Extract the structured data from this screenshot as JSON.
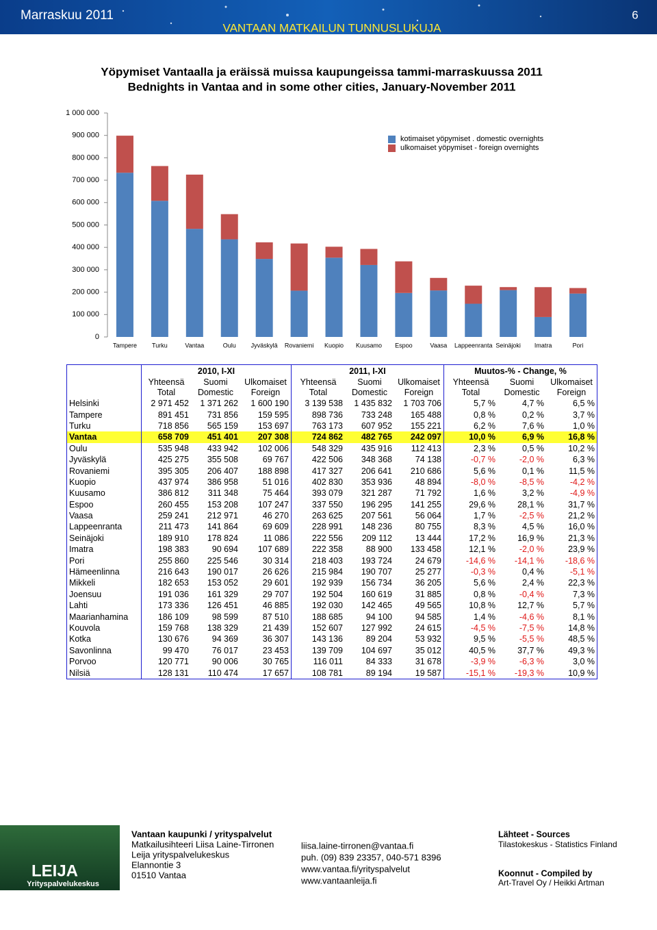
{
  "header": {
    "month": "Marraskuu 2011",
    "page": "6",
    "subtitle": "VANTAAN MATKAILUN TUNNUSLUKUJA"
  },
  "chart_data": {
    "type": "bar",
    "stacked": true,
    "title": [
      "Yöpymiset Vantaalla ja eräissä muissa kaupungeissa tammi-marraskuussa 2011",
      "Bednights in Vantaa and in some other cities, January-November 2011"
    ],
    "categories": [
      "Tampere",
      "Turku",
      "Vantaa",
      "Oulu",
      "Jyväskylä",
      "Rovaniemi",
      "Kuopio",
      "Kuusamo",
      "Espoo",
      "Vaasa",
      "Lappeenranta",
      "Seinäjoki",
      "Imatra",
      "Pori"
    ],
    "series": [
      {
        "name": "kotimaiset yöpymiset . domestic overnights",
        "color": "#4f81bd",
        "values": [
          733248,
          607952,
          482765,
          435916,
          348368,
          206641,
          353936,
          321287,
          196295,
          207561,
          148236,
          209112,
          88900,
          193724
        ]
      },
      {
        "name": "ulkomaiset yöpymiset - foreign overnights",
        "color": "#c0504d",
        "values": [
          165488,
          155221,
          242097,
          112413,
          74138,
          210686,
          48894,
          71792,
          141255,
          56064,
          80755,
          13444,
          133458,
          24679
        ]
      }
    ],
    "ylim": [
      0,
      1000000
    ],
    "yticks": [
      0,
      {
        "value": 100000,
        "label": "100 000"
      },
      {
        "value": 200000,
        "label": "200 000"
      },
      {
        "value": 300000,
        "label": "300 000"
      },
      {
        "value": 400000,
        "label": "400 000"
      },
      {
        "value": 500000,
        "label": "500 000"
      },
      {
        "value": 600000,
        "label": "600 000"
      },
      {
        "value": 700000,
        "label": "700 000"
      },
      {
        "value": 800000,
        "label": "800 000"
      },
      {
        "value": 900000,
        "label": "900 000"
      },
      {
        "value": 1000000,
        "label": "1 000 000"
      }
    ],
    "grid": false,
    "legend": "top-right"
  },
  "table": {
    "groups": [
      "2010, I-XI",
      "2011, I-XI",
      "Muutos-% - Change, %"
    ],
    "columns": [
      [
        "Yhteensä",
        "Total"
      ],
      [
        "Suomi",
        "Domestic"
      ],
      [
        "Ulkomaiset",
        "Foreign"
      ],
      [
        "Yhteensä",
        "Total"
      ],
      [
        "Suomi",
        "Domestic"
      ],
      [
        "Ulkomaiset",
        "Foreign"
      ],
      [
        "Yhteensä",
        "Total"
      ],
      [
        "Suomi",
        "Domestic"
      ],
      [
        "Ulkomaiset",
        "Foreign"
      ]
    ],
    "highlight": 3,
    "rows": [
      [
        "Helsinki",
        "2 971 452",
        "1 371 262",
        "1 600 190",
        "3 139 538",
        "1 435 832",
        "1 703 706",
        "5,7 %",
        "4,7 %",
        "6,5 %"
      ],
      [
        "Tampere",
        "891 451",
        "731 856",
        "159 595",
        "898 736",
        "733 248",
        "165 488",
        "0,8 %",
        "0,2 %",
        "3,7 %"
      ],
      [
        "Turku",
        "718 856",
        "565 159",
        "153 697",
        "763 173",
        "607 952",
        "155 221",
        "6,2 %",
        "7,6 %",
        "1,0 %"
      ],
      [
        "Vantaa",
        "658 709",
        "451 401",
        "207 308",
        "724 862",
        "482 765",
        "242 097",
        "10,0 %",
        "6,9 %",
        "16,8 %"
      ],
      [
        "Oulu",
        "535 948",
        "433 942",
        "102 006",
        "548 329",
        "435 916",
        "112 413",
        "2,3 %",
        "0,5 %",
        "10,2 %"
      ],
      [
        "Jyväskylä",
        "425 275",
        "355 508",
        "69 767",
        "422 506",
        "348 368",
        "74 138",
        "-0,7 %",
        "-2,0 %",
        "6,3 %"
      ],
      [
        "Rovaniemi",
        "395 305",
        "206 407",
        "188 898",
        "417 327",
        "206 641",
        "210 686",
        "5,6 %",
        "0,1 %",
        "11,5 %"
      ],
      [
        "Kuopio",
        "437 974",
        "386 958",
        "51 016",
        "402 830",
        "353 936",
        "48 894",
        "-8,0 %",
        "-8,5 %",
        "-4,2 %"
      ],
      [
        "Kuusamo",
        "386 812",
        "311 348",
        "75 464",
        "393 079",
        "321 287",
        "71 792",
        "1,6 %",
        "3,2 %",
        "-4,9 %"
      ],
      [
        "Espoo",
        "260 455",
        "153 208",
        "107 247",
        "337 550",
        "196 295",
        "141 255",
        "29,6 %",
        "28,1 %",
        "31,7 %"
      ],
      [
        "Vaasa",
        "259 241",
        "212 971",
        "46 270",
        "263 625",
        "207 561",
        "56 064",
        "1,7 %",
        "-2,5 %",
        "21,2 %"
      ],
      [
        "Lappeenranta",
        "211 473",
        "141 864",
        "69 609",
        "228 991",
        "148 236",
        "80 755",
        "8,3 %",
        "4,5 %",
        "16,0 %"
      ],
      [
        "Seinäjoki",
        "189 910",
        "178 824",
        "11 086",
        "222 556",
        "209 112",
        "13 444",
        "17,2 %",
        "16,9 %",
        "21,3 %"
      ],
      [
        "Imatra",
        "198 383",
        "90 694",
        "107 689",
        "222 358",
        "88 900",
        "133 458",
        "12,1 %",
        "-2,0 %",
        "23,9 %"
      ],
      [
        "Pori",
        "255 860",
        "225 546",
        "30 314",
        "218 403",
        "193 724",
        "24 679",
        "-14,6 %",
        "-14,1 %",
        "-18,6 %"
      ],
      [
        "Hämeenlinna",
        "216 643",
        "190 017",
        "26 626",
        "215 984",
        "190 707",
        "25 277",
        "-0,3 %",
        "0,4 %",
        "-5,1 %"
      ],
      [
        "Mikkeli",
        "182 653",
        "153 052",
        "29 601",
        "192 939",
        "156 734",
        "36 205",
        "5,6 %",
        "2,4 %",
        "22,3 %"
      ],
      [
        "Joensuu",
        "191 036",
        "161 329",
        "29 707",
        "192 504",
        "160 619",
        "31 885",
        "0,8 %",
        "-0,4 %",
        "7,3 %"
      ],
      [
        "Lahti",
        "173 336",
        "126 451",
        "46 885",
        "192 030",
        "142 465",
        "49 565",
        "10,8 %",
        "12,7 %",
        "5,7 %"
      ],
      [
        "Maarianhamina",
        "186 109",
        "98 599",
        "87 510",
        "188 685",
        "94 100",
        "94 585",
        "1,4 %",
        "-4,6 %",
        "8,1 %"
      ],
      [
        "Kouvola",
        "159 768",
        "138 329",
        "21 439",
        "152 607",
        "127 992",
        "24 615",
        "-4,5 %",
        "-7,5 %",
        "14,8 %"
      ],
      [
        "Kotka",
        "130 676",
        "94 369",
        "36 307",
        "143 136",
        "89 204",
        "53 932",
        "9,5 %",
        "-5,5 %",
        "48,5 %"
      ],
      [
        "Savonlinna",
        "99 470",
        "76 017",
        "23 453",
        "139 709",
        "104 697",
        "35 012",
        "40,5 %",
        "37,7 %",
        "49,3 %"
      ],
      [
        "Porvoo",
        "120 771",
        "90 006",
        "30 765",
        "116 011",
        "84 333",
        "31 678",
        "-3,9 %",
        "-6,3 %",
        "3,0 %"
      ],
      [
        "Nilsiä",
        "128 131",
        "110 474",
        "17 657",
        "108 781",
        "89 194",
        "19 587",
        "-15,1 %",
        "-19,3 %",
        "10,9 %"
      ]
    ]
  },
  "footer": {
    "logo": {
      "name": "LEIJA",
      "sub": "Yrityspalvelukeskus"
    },
    "org": {
      "title": "Vantaan kaupunki / yrityspalvelut",
      "lines": [
        "Matkailusihteeri Liisa Laine-Tirronen",
        "Leija yrityspalvelukeskus",
        "Elannontie 3",
        "01510 Vantaa"
      ]
    },
    "contact": [
      "liisa.laine-tirronen@vantaa.fi",
      "puh. (09) 839 23357, 040-571 8396",
      "www.vantaa.fi/yrityspalvelut",
      "www.vantaanleija.fi"
    ],
    "sources": {
      "title": "Lähteet - Sources",
      "text": "Tilastokeskus - Statistics Finland"
    },
    "compiled": {
      "title": "Koonnut - Compiled by",
      "text": "Art-Travel Oy / Heikki Artman"
    }
  }
}
